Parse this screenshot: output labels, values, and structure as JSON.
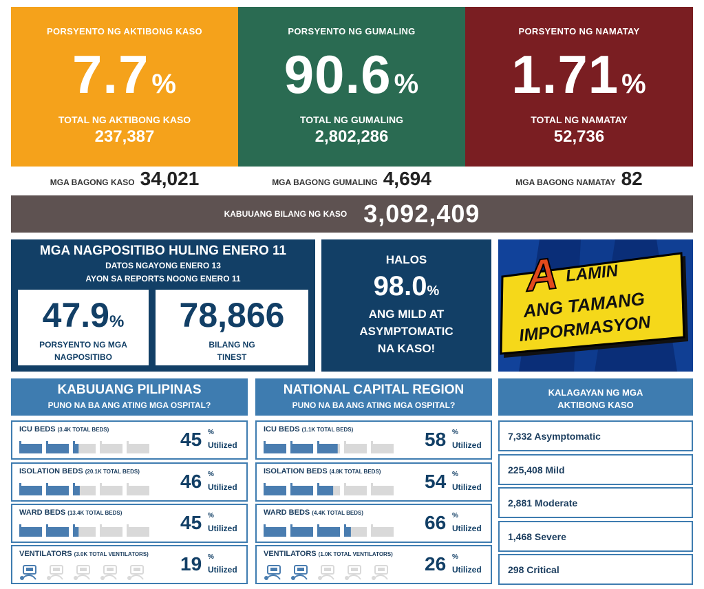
{
  "top_cards": [
    {
      "label": "PORSYENTO NG AKTIBONG KASO",
      "percent": "7.7",
      "pct_sign": "%",
      "sub_label": "TOTAL NG AKTIBONG KASO",
      "sub_value": "237,387",
      "color": "#f5a21b"
    },
    {
      "label": "PORSYENTO NG GUMALING",
      "percent": "90.6",
      "pct_sign": "%",
      "sub_label": "TOTAL NG GUMALING",
      "sub_value": "2,802,286",
      "color": "#2a6b52"
    },
    {
      "label": "PORSYENTO NG NAMATAY",
      "percent": "1.71",
      "pct_sign": "%",
      "sub_label": "TOTAL NG NAMATAY",
      "sub_value": "52,736",
      "color": "#7a1e22"
    }
  ],
  "new_counts": [
    {
      "label": "MGA BAGONG KASO",
      "value": "34,021"
    },
    {
      "label": "MGA BAGONG GUMALING",
      "value": "4,694"
    },
    {
      "label": "MGA BAGONG NAMATAY",
      "value": "82"
    }
  ],
  "total": {
    "label": "KABUUANG BILANG NG KASO",
    "value": "3,092,409"
  },
  "positivity": {
    "title": "MGA NAGPOSITIBO HULING ENERO 11",
    "line1": "DATOS NGAYONG ENERO 13",
    "line2": "AYON SA REPORTS NOONG ENERO 11",
    "rate": "47.9",
    "rate_sign": "%",
    "rate_label1": "PORSYENTO NG MGA",
    "rate_label2": "NAGPOSITIBO",
    "tested": "78,866",
    "tested_label1": "BILANG NG",
    "tested_label2": "TINEST"
  },
  "mild": {
    "line1": "HALOS",
    "value": "98.0",
    "sign": "%",
    "line2": "ANG MILD AT",
    "line3": "ASYMPTOMATIC",
    "line4": "NA KASO!"
  },
  "banner": {
    "letter": "A",
    "line1": "LAMIN",
    "line2": "ANG TAMANG",
    "line3": "IMPORMASYON"
  },
  "utilized_word": "Utilized",
  "pct_sign": "%",
  "ph": {
    "title": "KABUUANG PILIPINAS",
    "subtitle": "PUNO NA BA ANG ATING MGA OSPITAL?",
    "rows": [
      {
        "label": "ICU BEDS",
        "detail": "(3.4K TOTAL BEDS)",
        "value": "45",
        "fraction": 0.45
      },
      {
        "label": "ISOLATION BEDS",
        "detail": "(20.1K TOTAL BEDS)",
        "value": "46",
        "fraction": 0.46
      },
      {
        "label": "WARD BEDS",
        "detail": "(13.4K TOTAL BEDS)",
        "value": "45",
        "fraction": 0.45
      },
      {
        "label": "VENTILATORS",
        "detail": "(3.0K TOTAL VENTILATORS)",
        "value": "19",
        "fraction": 0.19
      }
    ]
  },
  "ncr": {
    "title": "NATIONAL CAPITAL REGION",
    "subtitle": "PUNO NA BA ANG ATING MGA OSPITAL?",
    "rows": [
      {
        "label": "ICU BEDS",
        "detail": "(1.1K TOTAL BEDS)",
        "value": "58",
        "fraction": 0.58
      },
      {
        "label": "ISOLATION BEDS",
        "detail": "(4.8K TOTAL BEDS)",
        "value": "54",
        "fraction": 0.54
      },
      {
        "label": "WARD BEDS",
        "detail": "(4.4K TOTAL BEDS)",
        "value": "66",
        "fraction": 0.66
      },
      {
        "label": "VENTILATORS",
        "detail": "(1.0K TOTAL VENTILATORS)",
        "value": "26",
        "fraction": 0.26
      }
    ]
  },
  "status": {
    "title1": "KALAGAYAN NG MGA",
    "title2": "AKTIBONG KASO",
    "items": [
      "7,332 Asymptomatic",
      "225,408 Mild",
      "2,881 Moderate",
      "1,468 Severe",
      "298 Critical"
    ]
  },
  "colors": {
    "bar_fill": "#4a7db0",
    "bar_empty": "#d9d9d9",
    "navy": "#123f66",
    "section_blue": "#3e7cb0"
  }
}
